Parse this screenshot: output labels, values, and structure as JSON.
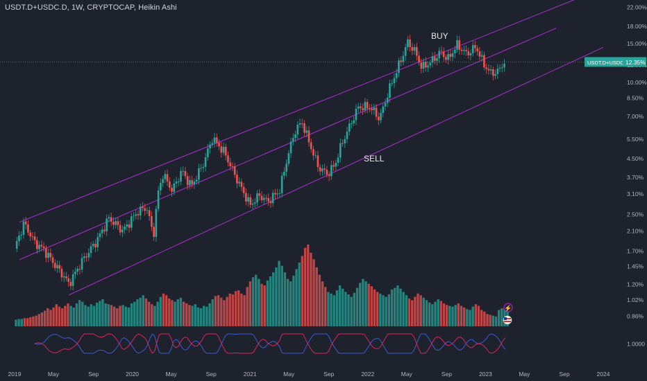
{
  "header": {
    "symbol": "USDT.D+USDC.D",
    "interval": "1W",
    "source": "CRYPTOCAP",
    "chart_style": "Heikin Ashi"
  },
  "price_tag": {
    "label": "USDT.D+USDC.D",
    "value": "12.35%"
  },
  "annotations": {
    "buy": "BUY",
    "sell": "SELL"
  },
  "colors": {
    "background": "#1e222d",
    "up_candle": "#26a69a",
    "down_candle": "#ef5350",
    "channel": "#b02ed6",
    "indicator_a": "#e0245e",
    "indicator_b": "#3d5bd9",
    "axis_text": "#b2b5be",
    "price_tag": "#26a69a"
  },
  "chart_data": {
    "type": "candlestick",
    "style": "Heikin Ashi",
    "y_scale": "log",
    "y_axis_labels": [
      "22.00%",
      "18.00%",
      "15.00%",
      "12.00%",
      "10.00%",
      "8.50%",
      "7.00%",
      "5.50%",
      "4.50%",
      "3.70%",
      "3.10%",
      "2.50%",
      "2.10%",
      "1.70%",
      "1.45%",
      "1.20%",
      "1.02%",
      "0.86%"
    ],
    "y_values": [
      22.0,
      18.0,
      15.0,
      12.0,
      10.0,
      8.5,
      7.0,
      5.5,
      4.5,
      3.7,
      3.1,
      2.5,
      2.1,
      1.7,
      1.45,
      1.2,
      1.02,
      0.86
    ],
    "indicator_axis_label": "1.0000",
    "x_axis_labels": [
      "2019",
      "May",
      "Sep",
      "2020",
      "May",
      "Sep",
      "2021",
      "May",
      "Sep",
      "2022",
      "May",
      "Sep",
      "2023",
      "May",
      "Sep",
      "2024"
    ],
    "x_axis_years": [
      2019.0,
      2019.33,
      2019.67,
      2020.0,
      2020.33,
      2020.67,
      2021.0,
      2021.33,
      2021.67,
      2022.0,
      2022.33,
      2022.67,
      2023.0,
      2023.33,
      2023.67,
      2024.0
    ],
    "last_value": 12.35,
    "closes_path": [
      [
        2019.0,
        1.74
      ],
      [
        2019.08,
        2.28
      ],
      [
        2019.17,
        1.86
      ],
      [
        2019.25,
        1.72
      ],
      [
        2019.33,
        1.5
      ],
      [
        2019.42,
        1.3
      ],
      [
        2019.46,
        1.2
      ],
      [
        2019.58,
        1.55
      ],
      [
        2019.7,
        1.9
      ],
      [
        2019.8,
        2.4
      ],
      [
        2019.92,
        2.1
      ],
      [
        2020.04,
        2.55
      ],
      [
        2020.12,
        2.7
      ],
      [
        2020.18,
        2.0
      ],
      [
        2020.22,
        3.15
      ],
      [
        2020.26,
        3.8
      ],
      [
        2020.34,
        3.2
      ],
      [
        2020.42,
        3.95
      ],
      [
        2020.5,
        3.35
      ],
      [
        2020.6,
        4.2
      ],
      [
        2020.68,
        5.55
      ],
      [
        2020.78,
        4.8
      ],
      [
        2020.9,
        3.5
      ],
      [
        2021.0,
        2.75
      ],
      [
        2021.08,
        3.05
      ],
      [
        2021.15,
        2.85
      ],
      [
        2021.25,
        3.2
      ],
      [
        2021.32,
        4.6
      ],
      [
        2021.38,
        5.95
      ],
      [
        2021.44,
        6.6
      ],
      [
        2021.5,
        5.35
      ],
      [
        2021.58,
        4.1
      ],
      [
        2021.66,
        3.8
      ],
      [
        2021.72,
        4.2
      ],
      [
        2021.78,
        5.25
      ],
      [
        2021.84,
        6.2
      ],
      [
        2021.92,
        7.7
      ],
      [
        2022.02,
        7.7
      ],
      [
        2022.1,
        6.8
      ],
      [
        2022.18,
        9.2
      ],
      [
        2022.26,
        11.8
      ],
      [
        2022.34,
        15.2
      ],
      [
        2022.4,
        13.8
      ],
      [
        2022.46,
        11.6
      ],
      [
        2022.54,
        12.4
      ],
      [
        2022.62,
        13.7
      ],
      [
        2022.68,
        12.7
      ],
      [
        2022.76,
        14.8
      ],
      [
        2022.84,
        13.4
      ],
      [
        2022.92,
        14.5
      ],
      [
        2022.98,
        12.2
      ],
      [
        2023.04,
        11.0
      ],
      [
        2023.1,
        11.1
      ],
      [
        2023.16,
        12.35
      ]
    ],
    "channel_lines": [
      {
        "name": "upper",
        "start": [
          2019.04,
          2.3
        ],
        "end": [
          2023.82,
          24.5
        ]
      },
      {
        "name": "middle",
        "start": [
          2019.04,
          1.55
        ],
        "end": [
          2023.6,
          17.6
        ]
      },
      {
        "name": "lower",
        "start": [
          2019.46,
          1.07
        ],
        "end": [
          2024.0,
          14.4
        ]
      }
    ],
    "volume_relative": [
      0.08,
      0.09,
      0.09,
      0.1,
      0.1,
      0.11,
      0.12,
      0.13,
      0.15,
      0.17,
      0.19,
      0.22,
      0.2,
      0.23,
      0.27,
      0.24,
      0.22,
      0.25,
      0.28,
      0.25,
      0.23,
      0.28,
      0.32,
      0.3,
      0.26,
      0.24,
      0.27,
      0.25,
      0.29,
      0.31,
      0.33,
      0.28,
      0.27,
      0.26,
      0.24,
      0.22,
      0.25,
      0.26,
      0.24,
      0.23,
      0.28,
      0.3,
      0.33,
      0.35,
      0.38,
      0.34,
      0.3,
      0.27,
      0.25,
      0.3,
      0.36,
      0.4,
      0.38,
      0.34,
      0.32,
      0.3,
      0.33,
      0.35,
      0.3,
      0.28,
      0.26,
      0.25,
      0.27,
      0.23,
      0.22,
      0.25,
      0.24,
      0.28,
      0.33,
      0.37,
      0.38,
      0.35,
      0.32,
      0.36,
      0.4,
      0.39,
      0.43,
      0.44,
      0.4,
      0.38,
      0.48,
      0.55,
      0.6,
      0.63,
      0.58,
      0.52,
      0.5,
      0.56,
      0.61,
      0.66,
      0.72,
      0.8,
      0.74,
      0.66,
      0.58,
      0.55,
      0.62,
      0.7,
      0.78,
      0.86,
      0.96,
      1.0,
      0.9,
      0.82,
      0.72,
      0.63,
      0.55,
      0.48,
      0.42,
      0.4,
      0.38,
      0.44,
      0.5,
      0.46,
      0.42,
      0.39,
      0.36,
      0.41,
      0.47,
      0.53,
      0.58,
      0.55,
      0.52,
      0.49,
      0.45,
      0.42,
      0.4,
      0.38,
      0.36,
      0.39,
      0.45,
      0.47,
      0.5,
      0.46,
      0.42,
      0.38,
      0.34,
      0.32,
      0.36,
      0.4,
      0.38,
      0.35,
      0.32,
      0.29,
      0.27,
      0.3,
      0.33,
      0.31,
      0.28,
      0.26,
      0.25,
      0.24,
      0.26,
      0.28,
      0.25,
      0.23,
      0.21,
      0.2,
      0.24,
      0.27,
      0.25,
      0.2,
      0.18,
      0.15,
      0.14,
      0.13,
      0.12,
      0.2,
      0.22,
      0.23,
      0.22
    ]
  }
}
